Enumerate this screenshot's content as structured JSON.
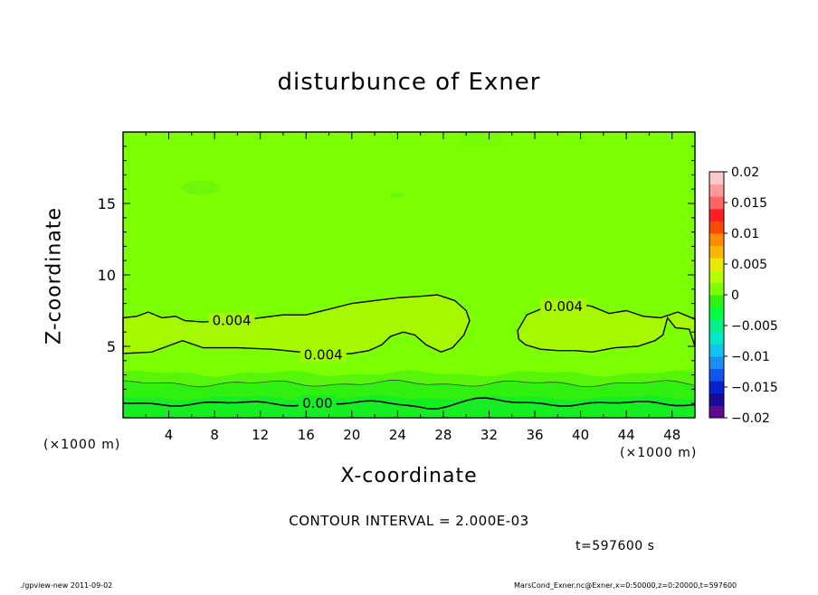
{
  "footer": {
    "program": "./gpview-new   2011-09-02",
    "source": "MarsCond_Exner.nc@Exner,x=0:50000,z=0:20000,t=597600"
  },
  "notes": {
    "contour_interval": "CONTOUR INTERVAL = 2.000E-03",
    "time": "t=597600 s"
  },
  "chart_data": {
    "type": "heatmap",
    "title": "disturbunce of Exner",
    "xlabel": "X-coordinate",
    "ylabel": "Z-coordinate",
    "x_unit_left": "(×1000 m)",
    "x_unit_right": "(×1000 m)",
    "xlim": [
      0,
      50
    ],
    "ylim": [
      0,
      20
    ],
    "xticks": [
      4,
      8,
      12,
      16,
      20,
      24,
      28,
      32,
      36,
      40,
      44,
      48
    ],
    "yticks": [
      5,
      10,
      15
    ],
    "colorbar": {
      "ticks": [
        "0.02",
        "0.015",
        "0.01",
        "0.005",
        "0",
        "−0.005",
        "−0.01",
        "−0.015",
        "−0.02"
      ],
      "range": [
        -0.02,
        0.02
      ],
      "colors": [
        "#5f0b8f",
        "#1a0a9a",
        "#0a1fd0",
        "#0f55f0",
        "#1c8df2",
        "#10c3f0",
        "#00e8c8",
        "#00f08a",
        "#00ff3c",
        "#30f010",
        "#7cff00",
        "#b4ff00",
        "#eee800",
        "#ffb400",
        "#ff8c00",
        "#ff4a00",
        "#ff1f1f",
        "#ff6464",
        "#ff9999",
        "#ffc8c8"
      ]
    },
    "background_color": "#7cff00",
    "contour_labels": [
      {
        "text": "0.004",
        "x": 9.5,
        "z": 6.8
      },
      {
        "text": "0.004",
        "x": 17.5,
        "z": 4.4
      },
      {
        "text": "0.004",
        "x": 38.5,
        "z": 7.8
      },
      {
        "text": "0.00",
        "x": 17.0,
        "z": 1.0
      }
    ]
  }
}
